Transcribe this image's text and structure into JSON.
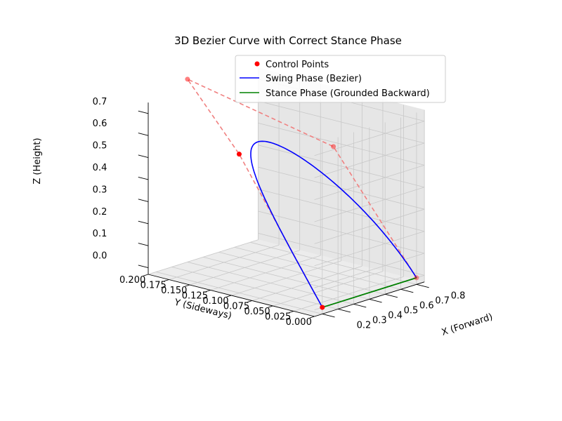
{
  "chart_data": {
    "type": "line3d",
    "title": "3D Bezier Curve with Correct Stance Phase",
    "xlabel": "X (Forward)",
    "ylabel": "Y (Sideways)",
    "zlabel": "Z (Height)",
    "xlim": [
      0.15,
      0.85
    ],
    "ylim": [
      0,
      0.2
    ],
    "zlim": [
      -0.03,
      0.75
    ],
    "x_ticks": [
      "0.2",
      "0.3",
      "0.4",
      "0.5",
      "0.6",
      "0.7",
      "0.8"
    ],
    "y_ticks": [
      "0.000",
      "0.025",
      "0.050",
      "0.075",
      "0.100",
      "0.125",
      "0.150",
      "0.175",
      "0.200"
    ],
    "z_ticks": [
      "0.0",
      "0.1",
      "0.2",
      "0.3",
      "0.4",
      "0.5",
      "0.6",
      "0.7"
    ],
    "grid": true,
    "legend_position": "upper-right",
    "legend": {
      "control_points": "Control Points",
      "swing": "Swing Phase (Bezier)",
      "stance": "Stance Phase (Grounded Backward)"
    },
    "colors": {
      "control_points": "#ff0000",
      "control_polygon": "#f08080",
      "swing": "#0000ff",
      "stance": "#008000"
    },
    "control_points": [
      {
        "x": 0.2,
        "y": 0.0,
        "z": 0.0
      },
      {
        "x": 0.2,
        "y": 0.1,
        "z": 0.6
      },
      {
        "x": 0.4,
        "y": 0.2,
        "z": 0.8
      },
      {
        "x": 0.8,
        "y": 0.1,
        "z": 0.5
      },
      {
        "x": 0.8,
        "y": 0.0,
        "z": 0.0
      }
    ],
    "stance": {
      "start": {
        "x": 0.8,
        "y": 0.0,
        "z": 0.0
      },
      "end": {
        "x": 0.2,
        "y": 0.0,
        "z": 0.0
      }
    }
  }
}
